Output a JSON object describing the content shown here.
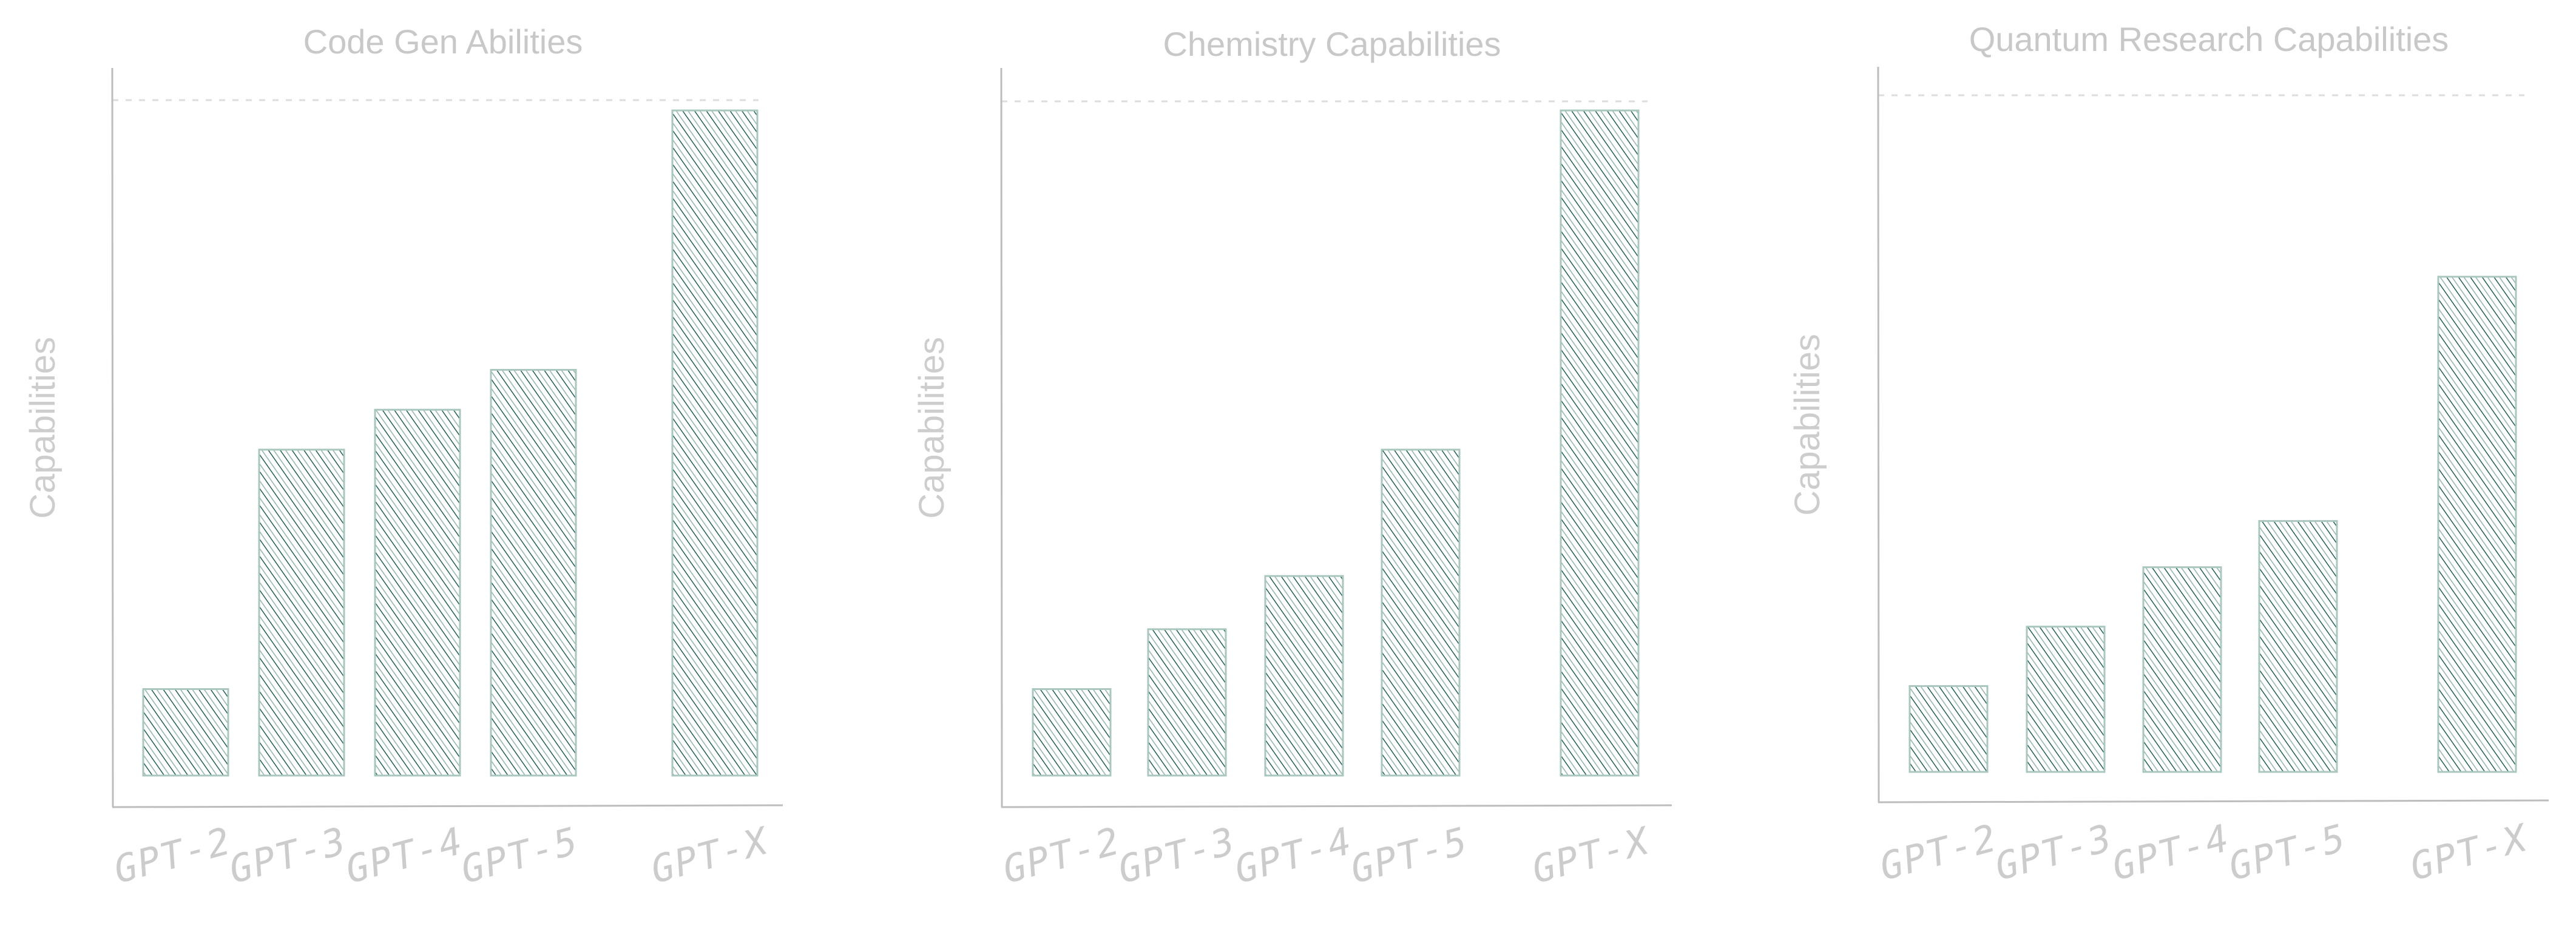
{
  "colors": {
    "bar_hatch": "#1f5f53",
    "bar_outline": "#a9c7bf",
    "text": "#c8c8c8",
    "axis": "#bdbdbd",
    "reference_line": "#dddddd"
  },
  "chart_data": [
    {
      "type": "bar",
      "title": "Code Gen Abilities",
      "xlabel": "",
      "ylabel": "Capabilities",
      "categories": [
        "GPT-2",
        "GPT-3",
        "GPT-4",
        "GPT-5",
        "GPT-X"
      ],
      "values": [
        13,
        49,
        55,
        61,
        100
      ],
      "ylim": [
        0,
        100
      ],
      "reference_line": 101,
      "grid": false,
      "y_ticks_shown": false,
      "fill": "hand-drawn diagonal hatch"
    },
    {
      "type": "bar",
      "title": "Chemistry Capabilities",
      "xlabel": "",
      "ylabel": "Capabilities",
      "categories": [
        "GPT-2",
        "GPT-3",
        "GPT-4",
        "GPT-5",
        "GPT-X"
      ],
      "values": [
        13,
        22,
        30,
        49,
        100
      ],
      "ylim": [
        0,
        100
      ],
      "reference_line": 101,
      "grid": false,
      "y_ticks_shown": false,
      "fill": "hand-drawn diagonal hatch"
    },
    {
      "type": "bar",
      "title": "Quantum Research Capabilities",
      "xlabel": "",
      "ylabel": "Capabilities",
      "categories": [
        "GPT-2",
        "GPT-3",
        "GPT-4",
        "GPT-5",
        "GPT-X"
      ],
      "values": [
        13,
        22,
        31,
        38,
        75
      ],
      "ylim": [
        0,
        100
      ],
      "reference_line": 102,
      "grid": false,
      "y_ticks_shown": false,
      "fill": "hand-drawn diagonal hatch"
    }
  ]
}
